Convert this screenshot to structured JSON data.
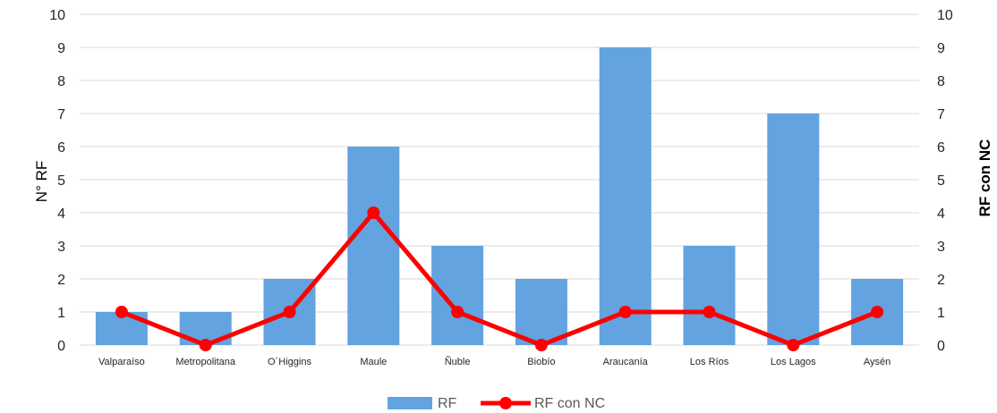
{
  "chart_data": {
    "type": "bar",
    "categories": [
      "Valparaíso",
      "Metropolitana",
      "O´Higgins",
      "Maule",
      "Ñuble",
      "Biobío",
      "Araucanía",
      "Los Ríos",
      "Los Lagos",
      "Aysén"
    ],
    "series": [
      {
        "name": "RF",
        "type": "bar",
        "axis": "left",
        "color": "#62A3E0",
        "values": [
          1,
          1,
          2,
          6,
          3,
          2,
          9,
          3,
          7,
          2
        ]
      },
      {
        "name": "RF con NC",
        "type": "line",
        "axis": "right",
        "color": "#FF0000",
        "values": [
          1,
          0,
          1,
          4,
          1,
          0,
          1,
          1,
          0,
          1
        ]
      }
    ],
    "ylabel": "N° RF",
    "y2label": "RF con NC",
    "ylim": [
      0,
      10
    ],
    "y2lim": [
      0,
      10
    ],
    "yticks": [
      "0",
      "1",
      "2",
      "3",
      "4",
      "5",
      "6",
      "7",
      "8",
      "9",
      "10"
    ],
    "grid": true,
    "legend_position": "bottom"
  }
}
